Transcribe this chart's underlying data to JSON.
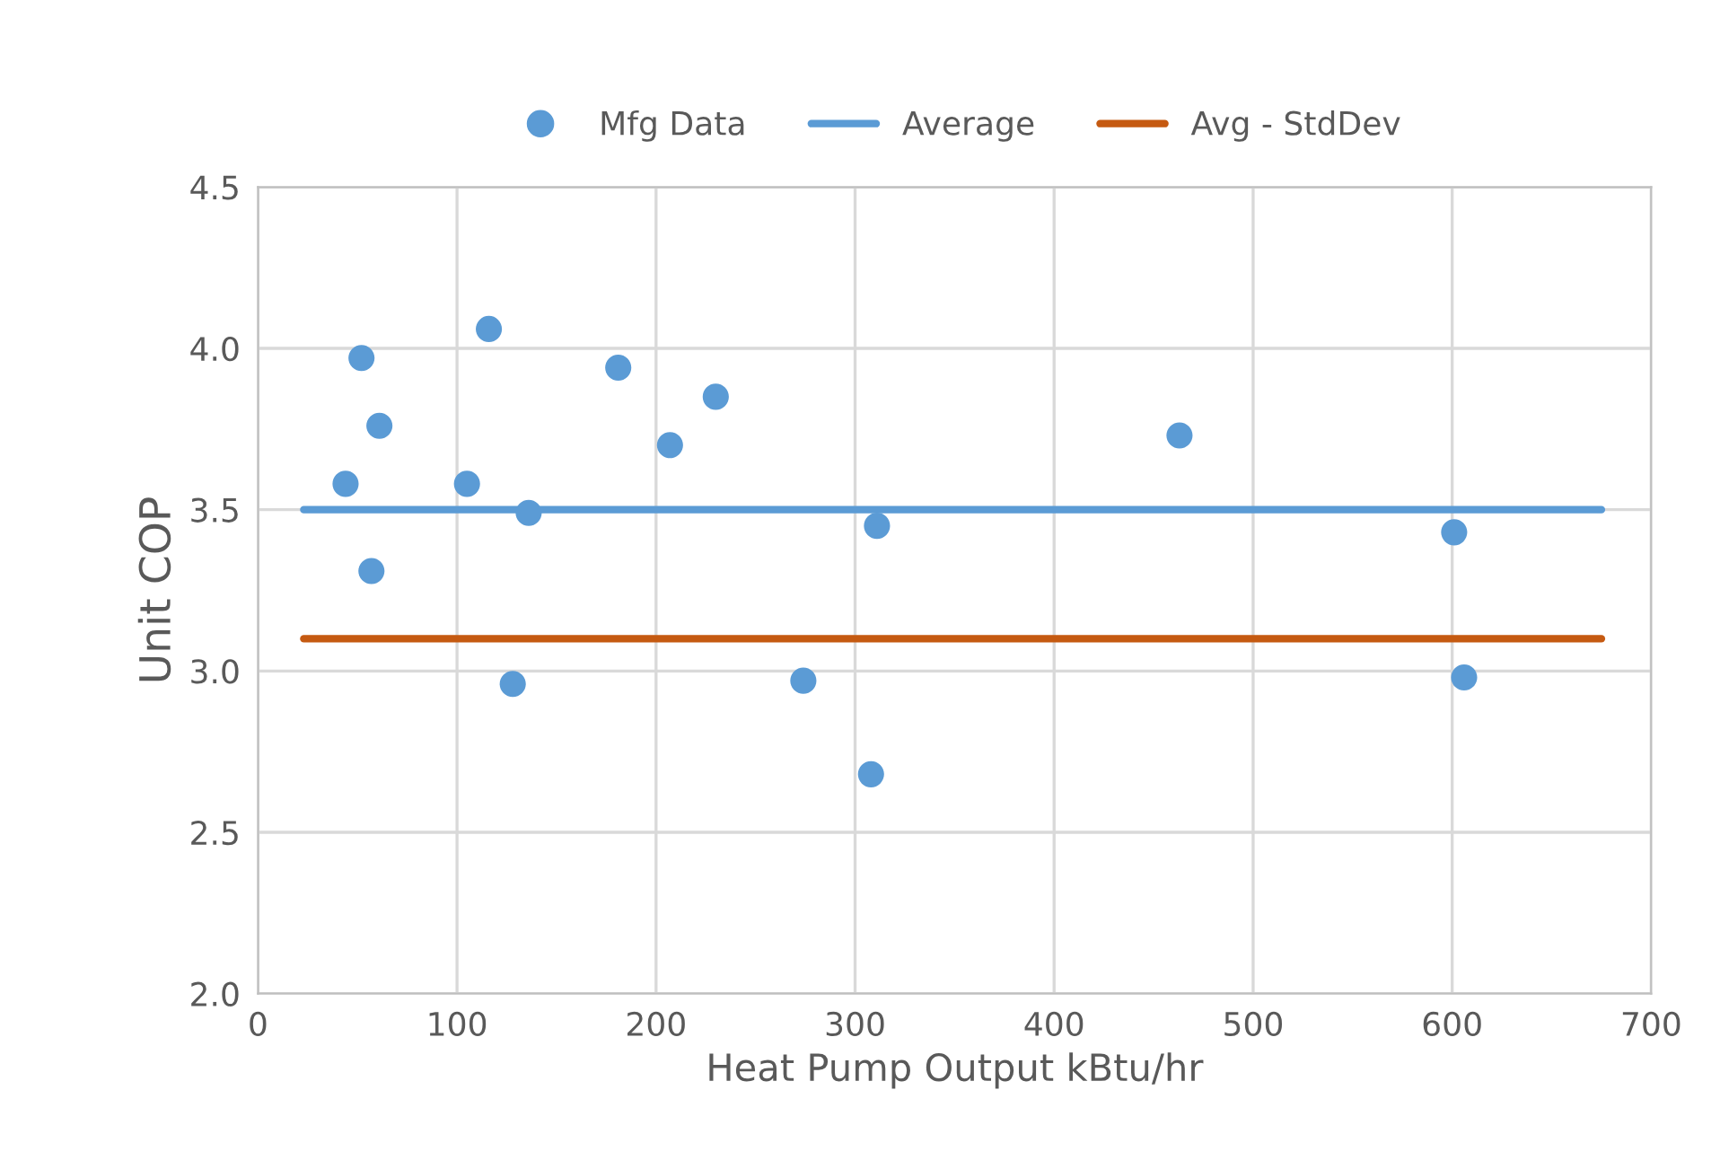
{
  "chart_data": {
    "type": "scatter",
    "xlabel": "Heat Pump Output kBtu/hr",
    "ylabel": "Unit COP",
    "xlim": [
      0,
      700
    ],
    "xticks": [
      0,
      100,
      200,
      300,
      400,
      500,
      600,
      700
    ],
    "ylim": [
      2.0,
      4.5
    ],
    "yticks": [
      {
        "value": 2.0,
        "label": "2.0"
      },
      {
        "value": 2.5,
        "label": "2.5"
      },
      {
        "value": 3.0,
        "label": "3.0"
      },
      {
        "value": 3.5,
        "label": "3.5"
      },
      {
        "value": 4.0,
        "label": "4.0"
      },
      {
        "value": 4.5,
        "label": "4.5"
      }
    ],
    "grid": true,
    "legend": "top",
    "series": [
      {
        "name": "Mfg Data",
        "marker": "circle",
        "color": "#5b9bd5",
        "x": [
          44,
          52,
          61,
          57,
          105,
          116,
          136,
          128,
          181,
          207,
          230,
          274,
          311,
          308,
          463,
          601,
          606
        ],
        "values": [
          3.58,
          3.97,
          3.76,
          3.31,
          3.58,
          4.06,
          3.49,
          2.96,
          3.94,
          3.7,
          3.85,
          2.97,
          3.45,
          2.68,
          3.73,
          3.43,
          2.98
        ]
      },
      {
        "name": "Average",
        "type": "line",
        "color": "#5b9bd5",
        "x": [
          23,
          675
        ],
        "values": [
          3.5,
          3.5
        ]
      },
      {
        "name": "Avg - StdDev",
        "type": "line",
        "color": "#c55a11",
        "x": [
          23,
          675
        ],
        "values": [
          3.1,
          3.1
        ]
      }
    ]
  }
}
